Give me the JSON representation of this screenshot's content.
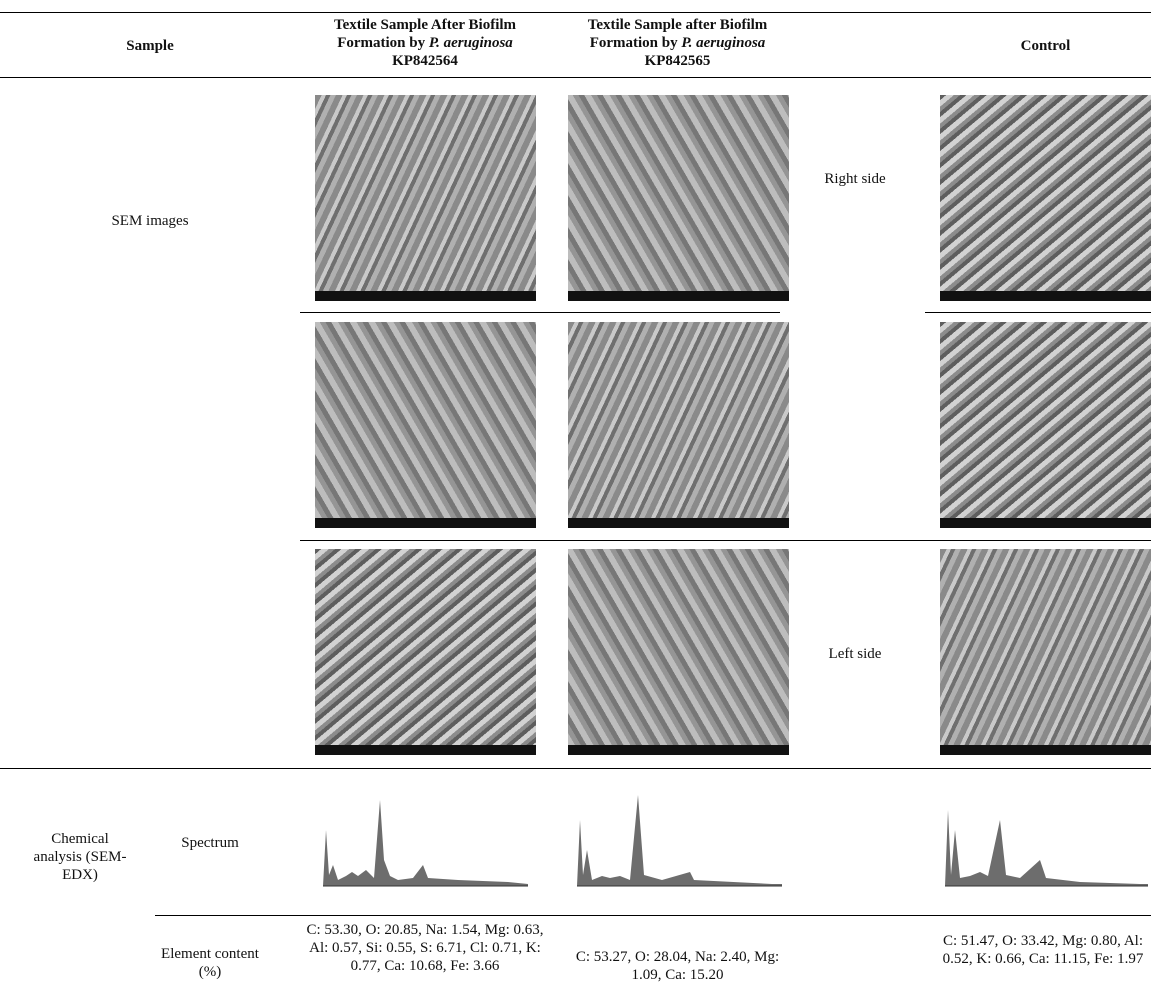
{
  "table": {
    "header": {
      "sample": "Sample",
      "col1": [
        "Textile Sample After Biofilm Formation by ",
        "P. aeruginosa",
        " KP842564"
      ],
      "col2": [
        "Textile Sample after Biofilm Formation by ",
        "P. aeruginosa",
        " KP842565"
      ],
      "control": "Control"
    },
    "sem": {
      "label": "SEM images",
      "right": "Right side",
      "left": "Left side"
    },
    "chem": {
      "label": "Chemical analysis (SEM-EDX)",
      "spectrum": "Spectrum",
      "element": "Element content (%)",
      "values": [
        "C: 53.30, O: 20.85, Na: 1.54, Mg: 0.63, Al: 0.57, Si: 0.55, S: 6.71, Cl: 0.71, K: 0.77, Ca: 10.68, Fe: 3.66",
        "C: 53.27, O: 28.04, Na: 2.40, Mg: 1.09, Ca: 15.20",
        "C: 51.47, O: 33.42, Mg: 0.80, Al: 0.52, K: 0.66, Ca: 11.15, Fe: 1.97"
      ]
    }
  }
}
